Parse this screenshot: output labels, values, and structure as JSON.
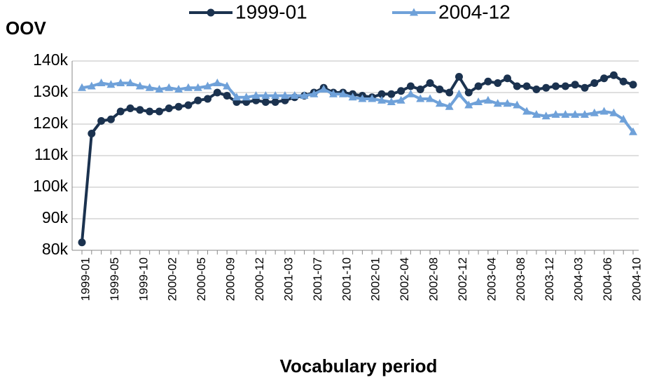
{
  "chart_data": {
    "type": "line",
    "y_label": "OOV",
    "x_label": "Vocabulary period",
    "categories": [
      "1999-01",
      null,
      null,
      "1999-05",
      null,
      null,
      "1999-10",
      null,
      null,
      "2000-02",
      null,
      null,
      "2000-05",
      null,
      null,
      "2000-09",
      null,
      null,
      "2000-12",
      null,
      null,
      "2001-03",
      null,
      null,
      "2001-07",
      null,
      null,
      "2001-10",
      null,
      null,
      "2002-01",
      null,
      null,
      "2002-04",
      null,
      null,
      "2002-08",
      null,
      null,
      "2002-12",
      null,
      null,
      "2003-04",
      null,
      null,
      "2003-08",
      null,
      null,
      "2003-12",
      null,
      null,
      "2004-03",
      null,
      null,
      "2004-06",
      null,
      null,
      "2004-10"
    ],
    "series": [
      {
        "name": "1999-01",
        "color": "#1b324f",
        "marker": "circle",
        "values": [
          82500,
          117000,
          121000,
          121500,
          124000,
          125000,
          124500,
          124000,
          124000,
          125000,
          125500,
          126000,
          127500,
          128000,
          130000,
          129000,
          127000,
          127000,
          127500,
          127000,
          127000,
          127500,
          128500,
          129000,
          130000,
          131500,
          130000,
          130000,
          129500,
          129000,
          128500,
          129500,
          129500,
          130500,
          132000,
          131000,
          133000,
          131000,
          130000,
          135000,
          130000,
          132000,
          133500,
          133000,
          134500,
          132000,
          132000,
          131000,
          131500,
          132000,
          132000,
          132500,
          131500,
          133000,
          134500,
          135500,
          133500,
          132500
        ]
      },
      {
        "name": "2004-12",
        "color": "#6fa1d9",
        "marker": "triangle",
        "values": [
          131500,
          132000,
          133000,
          132500,
          133000,
          133000,
          132000,
          131500,
          131000,
          131500,
          131000,
          131500,
          131500,
          132000,
          133000,
          132000,
          128500,
          128500,
          129000,
          129000,
          129000,
          129000,
          129000,
          129000,
          129500,
          131000,
          129500,
          129500,
          128500,
          128000,
          128000,
          127500,
          127000,
          127500,
          129500,
          128000,
          128000,
          126500,
          125500,
          129500,
          126000,
          127000,
          127500,
          126500,
          126500,
          126000,
          124000,
          123000,
          122500,
          123000,
          123000,
          123000,
          123000,
          123500,
          124000,
          123500,
          121500,
          117500
        ]
      }
    ],
    "ylim": [
      80000,
      140000
    ],
    "yticks": [
      {
        "value": 80000,
        "label": "80k"
      },
      {
        "value": 90000,
        "label": "90k"
      },
      {
        "value": 100000,
        "label": "100k"
      },
      {
        "value": 110000,
        "label": "110k"
      },
      {
        "value": 120000,
        "label": "120k"
      },
      {
        "value": 130000,
        "label": "130k"
      },
      {
        "value": 140000,
        "label": "140k"
      }
    ],
    "grid": true,
    "legend": "top"
  }
}
